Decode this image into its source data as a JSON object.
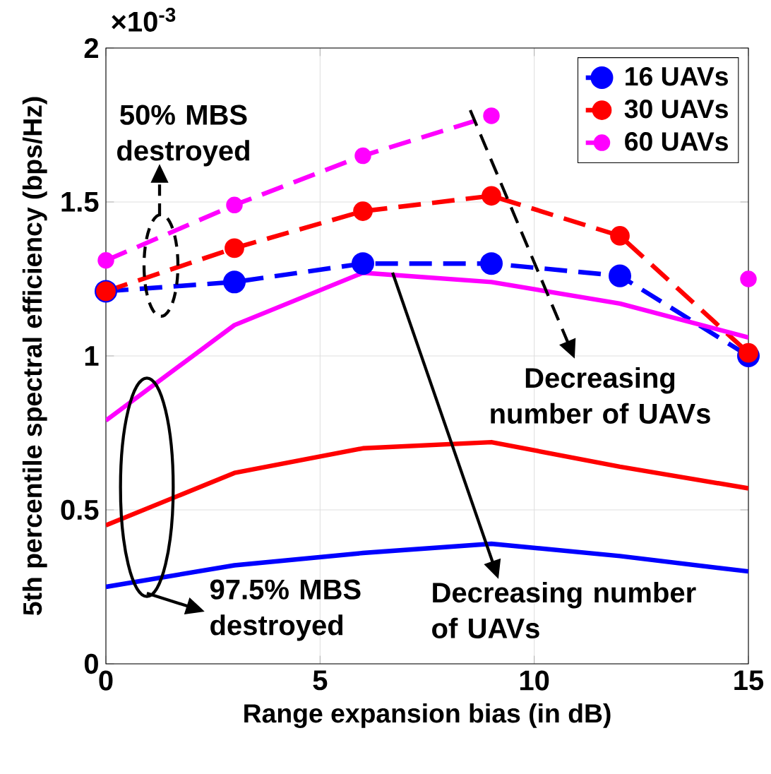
{
  "chart_data": {
    "type": "line",
    "xlabel": "Range expansion bias (in dB)",
    "ylabel": "5th percentile spectral efficiency (bps/Hz)",
    "x": [
      0,
      3,
      6,
      9,
      12,
      15
    ],
    "xlim": [
      0,
      15
    ],
    "xticks": [
      0,
      5,
      10,
      15
    ],
    "ylim": [
      0,
      2
    ],
    "yticks": [
      0,
      0.5,
      1,
      1.5,
      2
    ],
    "grid": true,
    "legend": "top right",
    "series": [
      {
        "name": "16 UAVs",
        "color": "#0000ff",
        "line_style": "dashed",
        "marker": "circle",
        "values": [
          1.21,
          1.24,
          1.3,
          1.3,
          1.26,
          1.0
        ]
      },
      {
        "name": "30 UAVs",
        "color": "#ff0000",
        "line_style": "dashed",
        "marker": "circle",
        "values": [
          1.21,
          1.35,
          1.47,
          1.52,
          1.39,
          1.01
        ]
      },
      {
        "name": "60 UAVs",
        "color": "#ff00ff",
        "line_style": "dashed",
        "marker": "circle",
        "values": [
          1.31,
          1.49,
          1.65,
          1.78,
          null,
          1.25
        ]
      },
      {
        "color": "#0000ff",
        "line_style": "solid",
        "marker": "none",
        "values": [
          0.25,
          0.32,
          0.36,
          0.39,
          0.35,
          0.3
        ]
      },
      {
        "color": "#ff0000",
        "line_style": "solid",
        "marker": "none",
        "values": [
          0.45,
          0.62,
          0.7,
          0.72,
          0.64,
          0.57
        ]
      },
      {
        "color": "#ff00ff",
        "line_style": "solid",
        "marker": "none",
        "values": [
          0.79,
          1.1,
          1.27,
          1.24,
          1.17,
          1.06
        ]
      }
    ],
    "annotations": [
      "×10$^{-3}$",
      "50% MBS destroyed",
      "Decreasing number of UAVs",
      "97.5% MBS destroyed",
      "Decreasing number of UAVs"
    ]
  }
}
